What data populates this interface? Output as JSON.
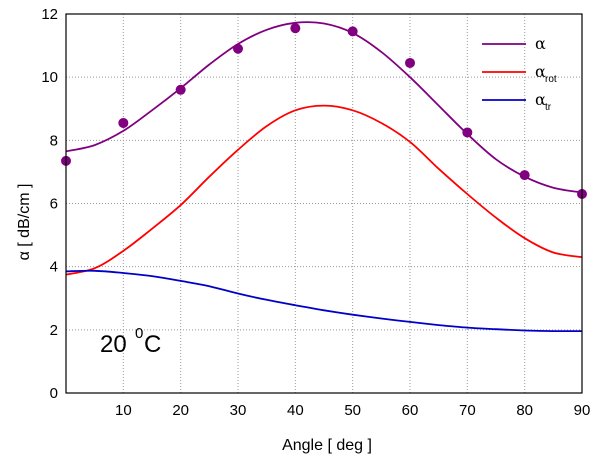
{
  "chart_data": {
    "type": "line",
    "xlabel": "Angle [ deg ]",
    "ylabel": "α [ dB/cm ]",
    "xlim": [
      0,
      90
    ],
    "ylim": [
      0,
      12
    ],
    "x_ticks": [
      "10",
      "20",
      "30",
      "40",
      "50",
      "60",
      "70",
      "80",
      "90"
    ],
    "y_ticks": [
      "0",
      "2",
      "4",
      "6",
      "8",
      "10",
      "12"
    ],
    "grid": "dotted",
    "legend_position": "top-right",
    "annotation": {
      "text": "20 ",
      "sup": "0",
      "unit": "C"
    },
    "series": [
      {
        "name": "α",
        "name_main": "α",
        "name_sub": "",
        "color": "#800080",
        "x": [
          0,
          5,
          10,
          15,
          20,
          25,
          30,
          35,
          40,
          45,
          50,
          55,
          60,
          65,
          70,
          75,
          80,
          85,
          90
        ],
        "y": [
          7.65,
          7.85,
          8.3,
          8.95,
          9.65,
          10.4,
          11.05,
          11.5,
          11.72,
          11.7,
          11.4,
          10.8,
          10.0,
          9.1,
          8.2,
          7.4,
          6.85,
          6.5,
          6.35
        ]
      },
      {
        "name": "αrot",
        "name_main": "α",
        "name_sub": "rot",
        "color": "#ff0000",
        "x": [
          0,
          5,
          10,
          15,
          20,
          25,
          30,
          35,
          40,
          45,
          50,
          55,
          60,
          65,
          70,
          75,
          80,
          85,
          90
        ],
        "y": [
          3.75,
          3.95,
          4.5,
          5.2,
          5.95,
          6.85,
          7.7,
          8.45,
          8.95,
          9.1,
          8.95,
          8.55,
          7.95,
          7.1,
          6.3,
          5.55,
          4.9,
          4.45,
          4.3
        ]
      },
      {
        "name": "αtr",
        "name_main": "α",
        "name_sub": "tr",
        "color": "#0000c8",
        "x": [
          0,
          5,
          10,
          15,
          20,
          25,
          30,
          35,
          40,
          45,
          50,
          55,
          60,
          65,
          70,
          75,
          80,
          85,
          90
        ],
        "y": [
          3.85,
          3.87,
          3.8,
          3.7,
          3.55,
          3.38,
          3.15,
          2.95,
          2.78,
          2.62,
          2.48,
          2.36,
          2.25,
          2.15,
          2.07,
          2.02,
          1.98,
          1.96,
          1.96
        ]
      }
    ],
    "points": {
      "name": "α",
      "color": "#800080",
      "x": [
        0,
        10,
        20,
        30,
        40,
        50,
        60,
        70,
        80,
        90
      ],
      "y": [
        7.35,
        8.55,
        9.6,
        10.9,
        11.55,
        11.45,
        10.45,
        8.25,
        6.9,
        6.3
      ]
    }
  }
}
